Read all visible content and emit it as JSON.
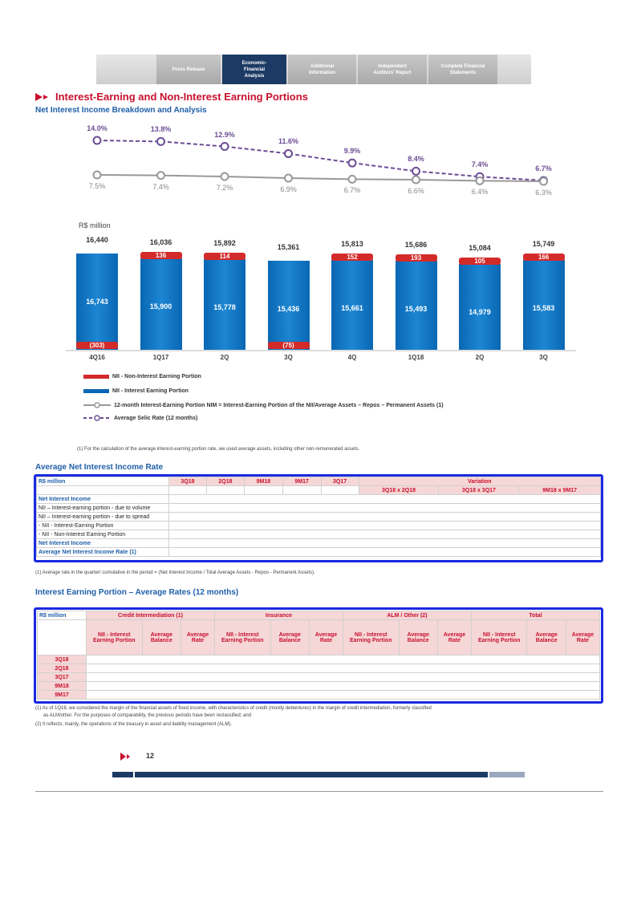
{
  "nav": {
    "tabs": [
      {
        "label": "Press Release"
      },
      {
        "label": "Economic-Financial Analysis"
      },
      {
        "label": "Additional Information"
      },
      {
        "label": "Independent Auditors' Report"
      },
      {
        "label": "Complete Financial Statements"
      }
    ]
  },
  "page_title": "Interest-Earning and Non-Interest Earning Portions",
  "section1_title": "Net Interest Income Breakdown and Analysis",
  "chart_data": [
    {
      "type": "line",
      "categories": [
        "4Q16",
        "1Q17",
        "2Q",
        "3Q",
        "4Q",
        "1Q18",
        "2Q",
        "3Q"
      ],
      "series": [
        {
          "name": "Average Selic Rate (12 months)",
          "values_label": [
            "14.0%",
            "13.8%",
            "12.9%",
            "11.6%",
            "9.9%",
            "8.4%",
            "7.4%",
            "6.7%"
          ],
          "values": [
            14.0,
            13.8,
            12.9,
            11.6,
            9.9,
            8.4,
            7.4,
            6.7
          ],
          "color": "#6b4d94"
        },
        {
          "name": "12-month Interest-Earning Portion NIM = Interest-Earning Portion of the NII/Average Assets – Repos – Permanent Assets (1)",
          "values_label": [
            "7.5%",
            "7.4%",
            "7.2%",
            "6.9%",
            "6.7%",
            "6.6%",
            "6.4%",
            "6.3%"
          ],
          "values": [
            7.5,
            7.4,
            7.2,
            6.9,
            6.7,
            6.6,
            6.4,
            6.3
          ],
          "color": "#999999"
        }
      ]
    },
    {
      "type": "bar",
      "ylabel": "R$ million",
      "categories": [
        "4Q16",
        "1Q17",
        "2Q",
        "3Q",
        "4Q",
        "1Q18",
        "2Q",
        "3Q"
      ],
      "totals": [
        "16,440",
        "16,036",
        "15,892",
        "15,361",
        "15,813",
        "15,686",
        "15,084",
        "15,749"
      ],
      "series": [
        {
          "name": "NII - Interest Earning Portion",
          "values": [
            16743,
            15900,
            15778,
            15436,
            15661,
            15493,
            14979,
            15583
          ],
          "labels": [
            "16,743",
            "15,900",
            "15,778",
            "15,436",
            "15,661",
            "15,493",
            "14,979",
            "15,583"
          ],
          "color": "#0a67b3"
        },
        {
          "name": "NII - Non-Interest Earning Portion",
          "values": [
            -303,
            136,
            114,
            -75,
            152,
            193,
            105,
            166
          ],
          "labels": [
            "(303)",
            "136",
            "114",
            "(75)",
            "152",
            "193",
            "105",
            "166"
          ],
          "color": "#d32a2a"
        }
      ]
    }
  ],
  "legend": [
    {
      "label": "NII - Non-Interest Earning Portion",
      "color": "#d32a2a"
    },
    {
      "label": "NII - Interest Earning Portion",
      "color": "#0a67b3"
    },
    {
      "label": "12-month Interest-Earning Portion NIM = Interest-Earning Portion of the NII/Average Assets – Repos – Permanent Assets (1)",
      "color": "#999999"
    },
    {
      "label": "Average Selic Rate (12 months)",
      "color": "#6b4d94"
    }
  ],
  "footnote1": "(1) For the calculation of the average interest-earning portion rate, we used average assets, including other non-remunerated assets.",
  "section2_title": "Average Net Interest Income Rate",
  "table1": {
    "corner": "R$ million",
    "cols": [
      "3Q18",
      "2Q18",
      "9M18",
      "9M17",
      "3Q17"
    ],
    "variation_header": "Variation",
    "variation_cols": [
      "3Q18 x 2Q18",
      "3Q18 x 3Q17",
      "9M18 x 9M17"
    ],
    "rows": [
      {
        "label": "Net Interest Income",
        "bold": true
      },
      {
        "label": "NII – Interest-earning portion - due to volume"
      },
      {
        "label": "NII – Interest-earning portion - due to spread"
      },
      {
        "label": "- NII - Interest-Earning Portion"
      },
      {
        "label": "- NII - Non-Interest Earning Portion"
      },
      {
        "label": "Net Interest Income",
        "bold": true
      },
      {
        "label": "Average Net Interest Income Rate (1)",
        "bold": true
      }
    ]
  },
  "footnote2": "(1) Average rate in the quarter/ cumulative in the period = (Net Interest Income / Total Average Assets - Repos - Permanent Assets).",
  "section3_title": "Interest Earning Portion – Average Rates (12 months)",
  "table2": {
    "corner": "R$ million",
    "groups": [
      {
        "label": "Credit Intermediation (1)"
      },
      {
        "label": "Insurance"
      },
      {
        "label": "ALM / Other (2)"
      },
      {
        "label": "Total"
      }
    ],
    "subcols": [
      "NII - Interest Earning Portion",
      "Average Balance",
      "Average Rate"
    ],
    "rows": [
      "3Q18",
      "2Q18",
      "3Q17",
      "9M18",
      "9M17"
    ]
  },
  "footnote3a": "(1) As of 1Q18, we considered the margin of the financial assets of fixed income, with characteristics of credit (mostly debentures) in the margin of credit intermediation, formerly classified",
  "footnote3b": "as ALM/other. For the purposes of comparability, the previous periods have been reclassified; and",
  "footnote3c": "(2) It reflects, mainly, the operations of the treasury in asset and liability management (ALM).",
  "page_number": "12"
}
